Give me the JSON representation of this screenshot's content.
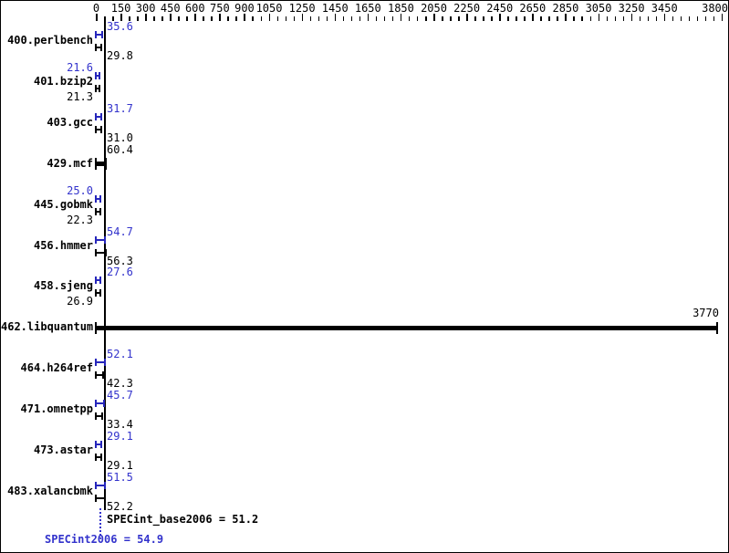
{
  "axis": {
    "min": 0,
    "max": 3800,
    "minor_step": 50,
    "labeled_ticks": [
      0,
      150,
      300,
      450,
      600,
      750,
      900,
      1050,
      1250,
      1450,
      1650,
      1850,
      2050,
      2250,
      2450,
      2650,
      2850,
      3050,
      3250,
      3450,
      3800
    ]
  },
  "benchmarks": [
    {
      "name": "400.perlbench",
      "bars": [
        {
          "run": "peak",
          "value": 35.6,
          "text": "35.6",
          "side": "right"
        },
        {
          "run": "base",
          "value": 29.8,
          "text": "29.8",
          "side": "right"
        }
      ]
    },
    {
      "name": "401.bzip2",
      "bars": [
        {
          "run": "peak",
          "value": 21.6,
          "text": "21.6",
          "side": "left"
        },
        {
          "run": "base",
          "value": 21.3,
          "text": "21.3",
          "side": "left"
        }
      ]
    },
    {
      "name": "403.gcc",
      "bars": [
        {
          "run": "peak",
          "value": 31.7,
          "text": "31.7",
          "side": "right"
        },
        {
          "run": "base",
          "value": 31.0,
          "text": "31.0",
          "side": "right"
        }
      ]
    },
    {
      "name": "429.mcf",
      "bars": [
        {
          "run": "single",
          "value": 60.4,
          "text": "60.4",
          "side": "right"
        }
      ]
    },
    {
      "name": "445.gobmk",
      "bars": [
        {
          "run": "peak",
          "value": 25.0,
          "text": "25.0",
          "side": "left"
        },
        {
          "run": "base",
          "value": 22.3,
          "text": "22.3",
          "side": "left"
        }
      ]
    },
    {
      "name": "456.hmmer",
      "bars": [
        {
          "run": "peak",
          "value": 54.7,
          "text": "54.7",
          "side": "right"
        },
        {
          "run": "base",
          "value": 56.3,
          "text": "56.3",
          "side": "right"
        }
      ]
    },
    {
      "name": "458.sjeng",
      "bars": [
        {
          "run": "peak",
          "value": 27.6,
          "text": "27.6",
          "side": "right"
        },
        {
          "run": "base",
          "value": 26.9,
          "text": "26.9",
          "side": "left"
        }
      ]
    },
    {
      "name": "462.libquantum",
      "bars": [
        {
          "run": "single",
          "value": 3770,
          "text": "3770",
          "side": "end"
        }
      ]
    },
    {
      "name": "464.h264ref",
      "bars": [
        {
          "run": "peak",
          "value": 52.1,
          "text": "52.1",
          "side": "right"
        },
        {
          "run": "base",
          "value": 42.3,
          "text": "42.3",
          "side": "right"
        }
      ]
    },
    {
      "name": "471.omnetpp",
      "bars": [
        {
          "run": "peak",
          "value": 45.7,
          "text": "45.7",
          "side": "right"
        },
        {
          "run": "base",
          "value": 33.4,
          "text": "33.4",
          "side": "right"
        }
      ]
    },
    {
      "name": "473.astar",
      "bars": [
        {
          "run": "peak",
          "value": 29.1,
          "text": "29.1",
          "side": "right"
        },
        {
          "run": "base",
          "value": 29.1,
          "text": "29.1",
          "side": "right"
        }
      ]
    },
    {
      "name": "483.xalancbmk",
      "bars": [
        {
          "run": "peak",
          "value": 51.5,
          "text": "51.5",
          "side": "right"
        },
        {
          "run": "base",
          "value": 52.2,
          "text": "52.2",
          "side": "right"
        }
      ]
    }
  ],
  "summary": {
    "base_label": "SPECint_base2006 = 51.2",
    "peak_label": "SPECint2006 = 54.9",
    "base_value": 51.2,
    "peak_value": 54.9
  },
  "colors": {
    "peak_text": "#3333cc",
    "peak_line": "#2626bb",
    "base": "#000000"
  },
  "chart_data": {
    "type": "bar",
    "orientation": "horizontal",
    "title": "",
    "xlabel": "",
    "ylabel": "",
    "xlim": [
      0,
      3800
    ],
    "x_tick_labels": [
      0,
      150,
      300,
      450,
      600,
      750,
      900,
      1050,
      1250,
      1450,
      1650,
      1850,
      2050,
      2250,
      2450,
      2650,
      2850,
      3050,
      3250,
      3450,
      3800
    ],
    "grid": false,
    "legend_position": "none",
    "categories": [
      "400.perlbench",
      "401.bzip2",
      "403.gcc",
      "429.mcf",
      "445.gobmk",
      "456.hmmer",
      "458.sjeng",
      "462.libquantum",
      "464.h264ref",
      "471.omnetpp",
      "473.astar",
      "483.xalancbmk"
    ],
    "series": [
      {
        "name": "peak (SPECint2006)",
        "color": "#3333cc",
        "values": [
          35.6,
          21.6,
          31.7,
          null,
          25.0,
          54.7,
          27.6,
          null,
          52.1,
          45.7,
          29.1,
          51.5
        ]
      },
      {
        "name": "base (SPECint_base2006)",
        "color": "#000000",
        "values": [
          29.8,
          21.3,
          31.0,
          60.4,
          22.3,
          56.3,
          26.9,
          3770,
          42.3,
          33.4,
          29.1,
          52.2
        ]
      }
    ],
    "annotations": [
      "SPECint_base2006 = 51.2",
      "SPECint2006 = 54.9"
    ]
  }
}
